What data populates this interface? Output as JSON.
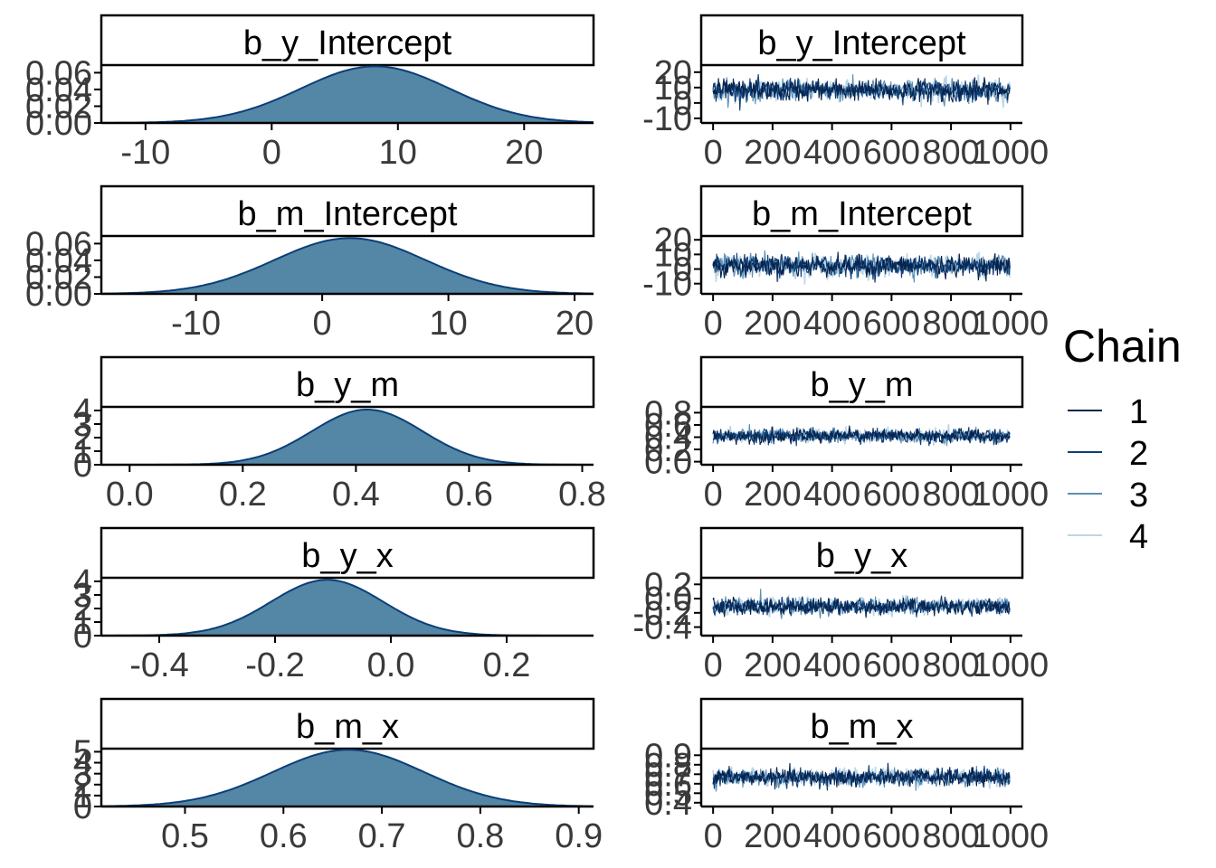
{
  "colors": {
    "density_fill": "#5486a5",
    "density_line": "#0b3e78",
    "chains": [
      "#06244f",
      "#0f3f78",
      "#5b8fb4",
      "#bcd6e8"
    ],
    "axis": "#000000",
    "tick_text": "#3a3a3a"
  },
  "legend": {
    "title": "Chain",
    "items": [
      "1",
      "2",
      "3",
      "4"
    ]
  },
  "chart_data": [
    {
      "type": "area",
      "parameter": "b_y_Intercept",
      "title": "b_y_Intercept",
      "xlim": [
        -13.5,
        25.5
      ],
      "ylim": [
        0,
        0.068
      ],
      "xticks": [
        -10,
        0,
        10,
        20
      ],
      "xtick_labels": [
        "-10",
        "0",
        "10",
        "20"
      ],
      "yticks": [
        0,
        0.02,
        0.04,
        0.06
      ],
      "ytick_labels": [
        "0.00",
        "0.02",
        "0.04",
        "0.06"
      ],
      "mean": 8.2,
      "sd": 5.9
    },
    {
      "type": "line",
      "parameter": "b_y_Intercept",
      "title": "b_y_Intercept",
      "xlim": [
        -40,
        1040
      ],
      "ylim": [
        -13,
        24
      ],
      "xticks": [
        0,
        200,
        400,
        600,
        800,
        1000
      ],
      "xtick_labels": [
        "0",
        "200",
        "400",
        "600",
        "800",
        "1000"
      ],
      "yticks": [
        -10,
        0,
        10,
        20
      ],
      "ytick_labels": [
        "-10",
        "0",
        "10",
        "20"
      ],
      "mean": 8.2,
      "sd": 5.9,
      "iterations": 1000
    },
    {
      "type": "area",
      "parameter": "b_m_Intercept",
      "title": "b_m_Intercept",
      "xlim": [
        -17.5,
        21.5
      ],
      "ylim": [
        0,
        0.068
      ],
      "xticks": [
        -10,
        0,
        10,
        20
      ],
      "xtick_labels": [
        "-10",
        "0",
        "10",
        "20"
      ],
      "yticks": [
        0,
        0.02,
        0.04,
        0.06
      ],
      "ytick_labels": [
        "0.00",
        "0.02",
        "0.04",
        "0.06"
      ],
      "mean": 2.2,
      "sd": 6.0
    },
    {
      "type": "line",
      "parameter": "b_m_Intercept",
      "title": "b_m_Intercept",
      "xlim": [
        -40,
        1040
      ],
      "ylim": [
        -17,
        22
      ],
      "xticks": [
        0,
        200,
        400,
        600,
        800,
        1000
      ],
      "xtick_labels": [
        "0",
        "200",
        "400",
        "600",
        "800",
        "1000"
      ],
      "yticks": [
        -10,
        0,
        10,
        20
      ],
      "ytick_labels": [
        "-10",
        "0",
        "10",
        "20"
      ],
      "mean": 2.2,
      "sd": 6.0,
      "iterations": 1000
    },
    {
      "type": "area",
      "parameter": "b_y_m",
      "title": "b_y_m",
      "xlim": [
        -0.05,
        0.82
      ],
      "ylim": [
        0,
        4.2
      ],
      "xticks": [
        0.0,
        0.2,
        0.4,
        0.6,
        0.8
      ],
      "xtick_labels": [
        "0.0",
        "0.2",
        "0.4",
        "0.6",
        "0.8"
      ],
      "yticks": [
        0,
        1,
        2,
        3,
        4
      ],
      "ytick_labels": [
        "0",
        "1",
        "2",
        "3",
        "4"
      ],
      "mean": 0.42,
      "sd": 0.098
    },
    {
      "type": "line",
      "parameter": "b_y_m",
      "title": "b_y_m",
      "xlim": [
        -40,
        1040
      ],
      "ylim": [
        -0.05,
        0.88
      ],
      "xticks": [
        0,
        200,
        400,
        600,
        800,
        1000
      ],
      "xtick_labels": [
        "0",
        "200",
        "400",
        "600",
        "800",
        "1000"
      ],
      "yticks": [
        0.0,
        0.2,
        0.4,
        0.6,
        0.8
      ],
      "ytick_labels": [
        "0.0",
        "0.2",
        "0.4",
        "0.6",
        "0.8"
      ],
      "mean": 0.42,
      "sd": 0.098,
      "iterations": 1000
    },
    {
      "type": "area",
      "parameter": "b_y_x",
      "title": "b_y_x",
      "xlim": [
        -0.5,
        0.35
      ],
      "ylim": [
        0,
        4.2
      ],
      "xticks": [
        -0.4,
        -0.2,
        0.0,
        0.2
      ],
      "xtick_labels": [
        "-0.4",
        "-0.2",
        "0.0",
        "0.2"
      ],
      "yticks": [
        0,
        1,
        2,
        3,
        4
      ],
      "ytick_labels": [
        "0",
        "1",
        "2",
        "3",
        "4"
      ],
      "mean": -0.11,
      "sd": 0.097
    },
    {
      "type": "line",
      "parameter": "b_y_x",
      "title": "b_y_x",
      "xlim": [
        -40,
        1040
      ],
      "ylim": [
        -0.52,
        0.28
      ],
      "xticks": [
        0,
        200,
        400,
        600,
        800,
        1000
      ],
      "xtick_labels": [
        "0",
        "200",
        "400",
        "600",
        "800",
        "1000"
      ],
      "yticks": [
        -0.4,
        -0.2,
        0.0,
        0.2
      ],
      "ytick_labels": [
        "-0.4",
        "-0.2",
        "0.0",
        "0.2"
      ],
      "mean": -0.11,
      "sd": 0.097,
      "iterations": 1000
    },
    {
      "type": "area",
      "parameter": "b_m_x",
      "title": "b_m_x",
      "xlim": [
        0.415,
        0.915
      ],
      "ylim": [
        0,
        5.2
      ],
      "xticks": [
        0.5,
        0.6,
        0.7,
        0.8,
        0.9
      ],
      "xtick_labels": [
        "0.5",
        "0.6",
        "0.7",
        "0.8",
        "0.9"
      ],
      "yticks": [
        0,
        1,
        2,
        3,
        4,
        5
      ],
      "ytick_labels": [
        "0",
        "1",
        "2",
        "3",
        "4",
        "5"
      ],
      "mean": 0.666,
      "sd": 0.077
    },
    {
      "type": "line",
      "parameter": "b_m_x",
      "title": "b_m_x",
      "xlim": [
        -40,
        1040
      ],
      "ylim": [
        0.36,
        0.96
      ],
      "xticks": [
        0,
        200,
        400,
        600,
        800,
        1000
      ],
      "xtick_labels": [
        "0",
        "200",
        "400",
        "600",
        "800",
        "1000"
      ],
      "yticks": [
        0.4,
        0.5,
        0.6,
        0.7,
        0.8,
        0.9
      ],
      "ytick_labels": [
        "0.4",
        "0.5",
        "0.6",
        "0.7",
        "0.8",
        "0.9"
      ],
      "mean": 0.666,
      "sd": 0.077,
      "iterations": 1000
    }
  ]
}
